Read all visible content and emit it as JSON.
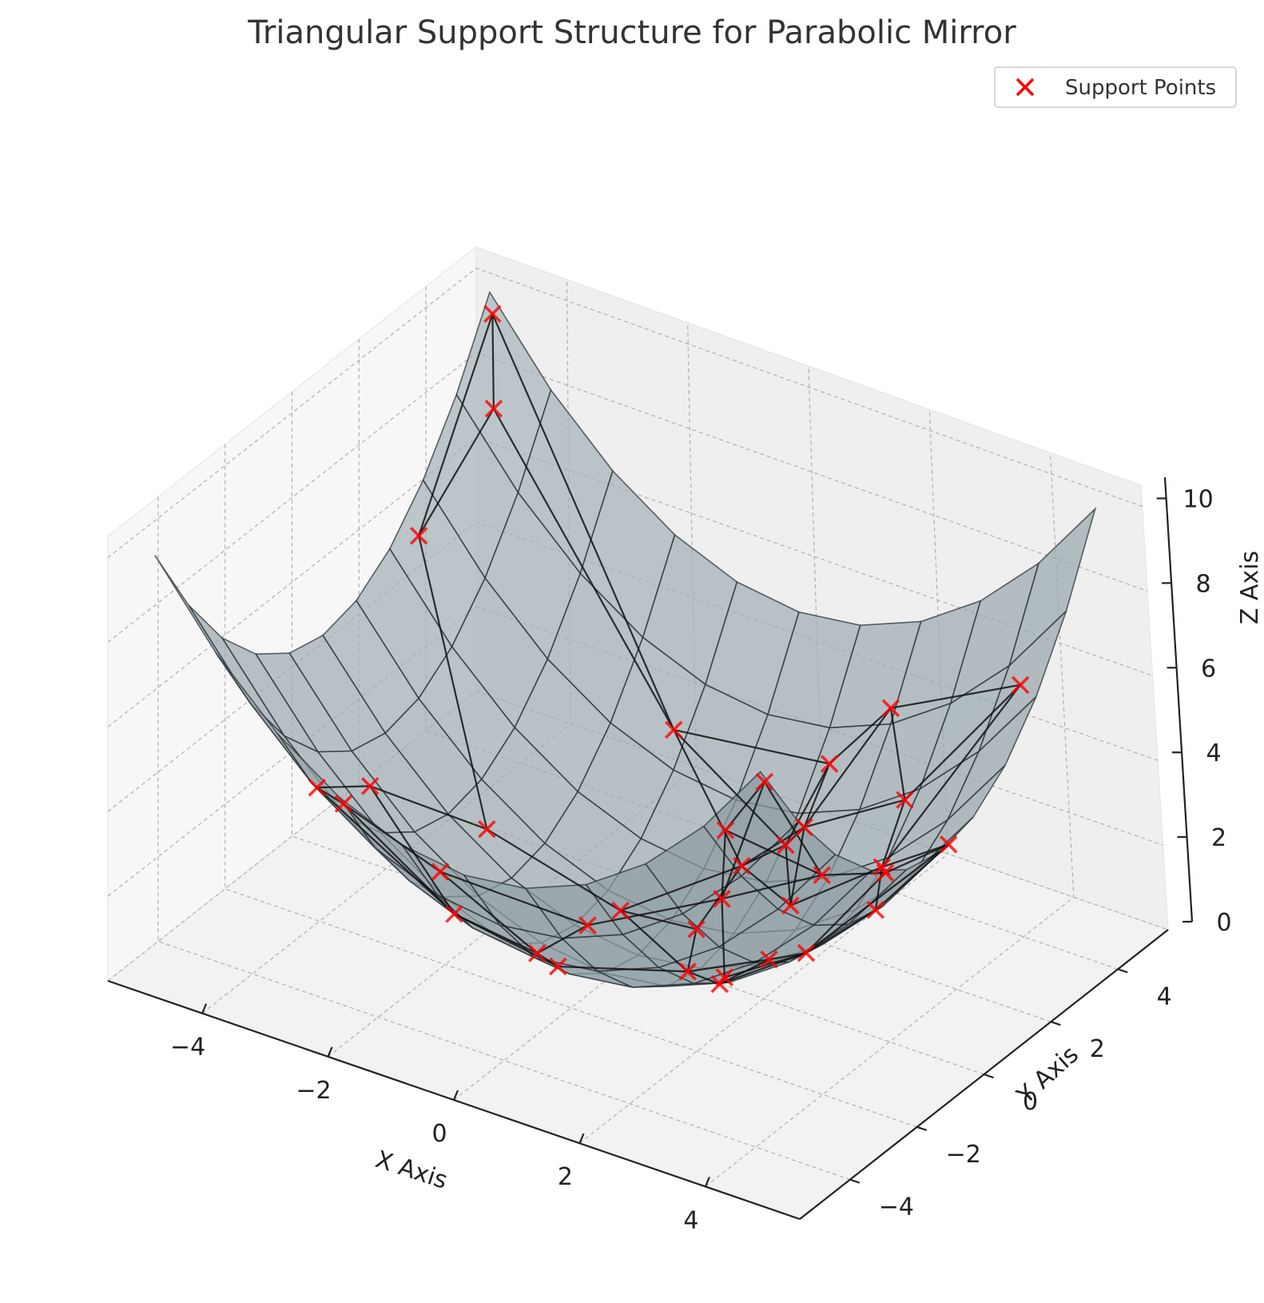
{
  "chart_data": {
    "type": "scatter",
    "projection": "3d",
    "title": "Triangular Support Structure for Parabolic Mirror",
    "xlabel": "X Axis",
    "ylabel": "Y Axis",
    "zlabel": "Z Axis",
    "xlim": [
      -5.5,
      5.5
    ],
    "ylim": [
      -5.5,
      5.5
    ],
    "zlim": [
      0,
      10.5
    ],
    "x_ticks": [
      "−4",
      "−2",
      "0",
      "2",
      "4"
    ],
    "y_ticks": [
      "−4",
      "−2",
      "0",
      "2",
      "4"
    ],
    "z_ticks": [
      "0",
      "2",
      "4",
      "6",
      "8",
      "10"
    ],
    "grid": true,
    "legend_position": "top-right",
    "surface": {
      "equation": "z = (x^2 + y^2) / 5",
      "range": [
        -5,
        5
      ],
      "color": "#9fb4bd"
    },
    "series": [
      {
        "name": "Support Points",
        "marker": "x",
        "color": "#ff0000",
        "points": [
          [
            -4.9,
            4.9,
            9.6
          ],
          [
            -4.5,
            4.2,
            8.0
          ],
          [
            -4.8,
            2.5,
            5.9
          ],
          [
            -3.6,
            -1.2,
            2.9
          ],
          [
            -3.2,
            -3.5,
            4.5
          ],
          [
            -2.6,
            0.4,
            1.4
          ],
          [
            -2.0,
            -4.9,
            5.6
          ],
          [
            -1.4,
            -2.8,
            2.0
          ],
          [
            -0.5,
            -4.8,
            4.7
          ],
          [
            -0.3,
            -1.8,
            0.7
          ],
          [
            0.4,
            1.0,
            0.2
          ],
          [
            0.5,
            2.2,
            1.0
          ],
          [
            1.2,
            2.8,
            1.9
          ],
          [
            1.9,
            4.2,
            4.2
          ],
          [
            0.9,
            -0.2,
            0.2
          ],
          [
            1.8,
            -0.9,
            0.8
          ],
          [
            1.6,
            1.6,
            1.0
          ],
          [
            3.0,
            -0.5,
            1.9
          ],
          [
            3.6,
            0.5,
            2.6
          ],
          [
            4.8,
            0.6,
            4.7
          ],
          [
            5.0,
            -4.9,
            9.7
          ],
          [
            5.0,
            -1.6,
            5.5
          ],
          [
            4.4,
            3.6,
            6.4
          ],
          [
            2.8,
            2.9,
            3.3
          ],
          [
            3.0,
            1.8,
            2.5
          ],
          [
            2.5,
            -2.0,
            2.0
          ],
          [
            1.6,
            -4.3,
            4.2
          ],
          [
            3.6,
            -3.9,
            5.6
          ],
          [
            4.7,
            -2.9,
            6.1
          ],
          [
            4.3,
            -4.9,
            8.2
          ],
          [
            0.2,
            -3.3,
            2.2
          ],
          [
            2.0,
            0.2,
            0.8
          ],
          [
            -0.7,
            0.8,
            0.2
          ],
          [
            1.2,
            3.6,
            2.9
          ],
          [
            1.0,
            2.6,
            1.5
          ],
          [
            -1.2,
            3.4,
            2.6
          ]
        ]
      }
    ]
  }
}
